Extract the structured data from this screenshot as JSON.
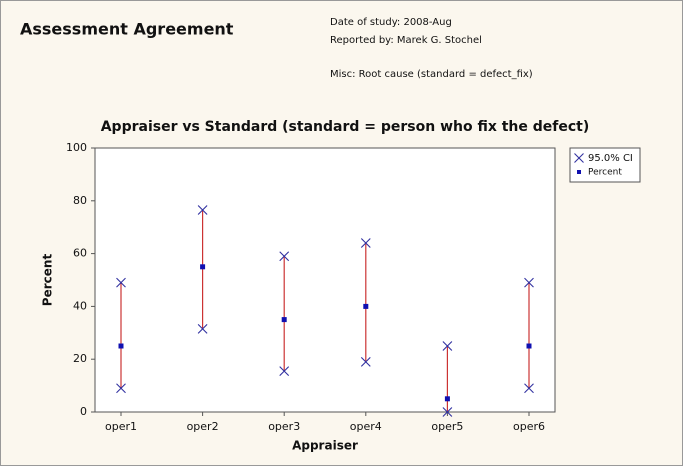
{
  "header": {
    "title": "Assessment Agreement",
    "date": "Date of study: 2008-Aug",
    "reporter": "Reported by: Marek G. Stochel",
    "misc": "Misc: Root cause (standard = defect_fix)"
  },
  "chart_data": {
    "type": "interval",
    "title": "Appraiser vs Standard (standard = person who fix the defect)",
    "xlabel": "Appraiser",
    "ylabel": "Percent",
    "categories": [
      "oper1",
      "oper2",
      "oper3",
      "oper4",
      "oper5",
      "oper6"
    ],
    "series": [
      {
        "name": "Percent",
        "color": "#1010b0",
        "values": [
          25,
          55,
          35,
          40,
          5,
          25
        ]
      }
    ],
    "ci": {
      "name": "95.0% CI",
      "color": "#3030a0",
      "line_color": "#cc3333",
      "lower": [
        9,
        31.5,
        15.5,
        19,
        0,
        9
      ],
      "upper": [
        49,
        76.5,
        59,
        64,
        25,
        49
      ]
    },
    "ylim": [
      0,
      100
    ],
    "yticks": [
      0,
      20,
      40,
      60,
      80,
      100
    ],
    "grid": false,
    "legend": "right"
  }
}
